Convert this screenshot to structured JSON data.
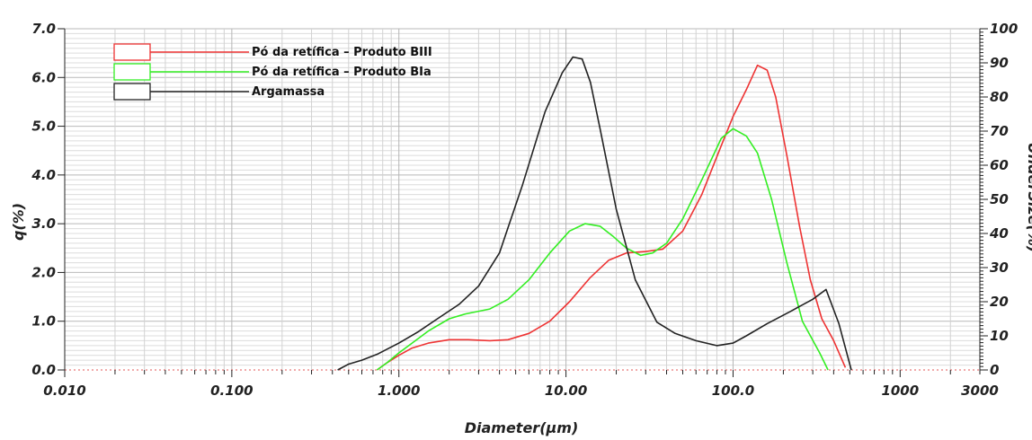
{
  "chart_data": {
    "type": "line",
    "xscale": "log",
    "xlim": [
      0.01,
      3000
    ],
    "ylim": [
      0,
      7
    ],
    "y2lim": [
      0,
      100
    ],
    "xlabel": "Diameter(µm)",
    "ylabel": "q(%)",
    "y2label": "UnderSize(%)",
    "grid": true,
    "legend_position": "top-left",
    "x_tick_labels": [
      {
        "v": 0.01,
        "label": "0.010"
      },
      {
        "v": 0.1,
        "label": "0.100"
      },
      {
        "v": 1,
        "label": "1.000"
      },
      {
        "v": 10,
        "label": "10.00"
      },
      {
        "v": 100,
        "label": "100.0"
      },
      {
        "v": 1000,
        "label": "1000"
      },
      {
        "v": 3000,
        "label": "3000"
      }
    ],
    "y_tick_labels": [
      {
        "v": 0,
        "label": "0.0"
      },
      {
        "v": 1,
        "label": "1.0"
      },
      {
        "v": 2,
        "label": "2.0"
      },
      {
        "v": 3,
        "label": "3.0"
      },
      {
        "v": 4,
        "label": "4.0"
      },
      {
        "v": 5,
        "label": "5.0"
      },
      {
        "v": 6,
        "label": "6.0"
      },
      {
        "v": 7,
        "label": "7.0"
      }
    ],
    "y2_tick_labels": [
      {
        "v": 0,
        "label": "0"
      },
      {
        "v": 10,
        "label": "10"
      },
      {
        "v": 20,
        "label": "20"
      },
      {
        "v": 30,
        "label": "30"
      },
      {
        "v": 40,
        "label": "40"
      },
      {
        "v": 50,
        "label": "50"
      },
      {
        "v": 60,
        "label": "60"
      },
      {
        "v": 70,
        "label": "70"
      },
      {
        "v": 80,
        "label": "80"
      },
      {
        "v": 90,
        "label": "90"
      },
      {
        "v": 100,
        "label": "100"
      }
    ],
    "series": [
      {
        "name": "Pó da retífica – Produto BIII",
        "color": "#ee3333",
        "x": [
          0.74,
          0.85,
          1.0,
          1.2,
          1.5,
          2.0,
          2.6,
          3.5,
          4.5,
          6.0,
          8.0,
          10.5,
          14,
          18,
          23,
          30,
          38,
          50,
          65,
          85,
          100,
          120,
          140,
          160,
          180,
          210,
          250,
          290,
          340,
          400,
          470
        ],
        "y": [
          0.0,
          0.15,
          0.3,
          0.45,
          0.55,
          0.62,
          0.62,
          0.6,
          0.62,
          0.75,
          1.0,
          1.4,
          1.9,
          2.25,
          2.4,
          2.43,
          2.48,
          2.85,
          3.6,
          4.6,
          5.2,
          5.75,
          6.25,
          6.15,
          5.6,
          4.4,
          2.95,
          1.85,
          1.05,
          0.6,
          0.05
        ]
      },
      {
        "name": "Pó da retífica – Produto BIa",
        "color": "#33ee22",
        "x": [
          0.74,
          0.85,
          1.0,
          1.2,
          1.5,
          2.0,
          2.5,
          3.5,
          4.5,
          6.0,
          8.0,
          10.5,
          13,
          16,
          19,
          23,
          28,
          33,
          40,
          50,
          65,
          85,
          100,
          120,
          140,
          170,
          210,
          260,
          330,
          370
        ],
        "y": [
          0.0,
          0.15,
          0.35,
          0.55,
          0.8,
          1.05,
          1.15,
          1.25,
          1.45,
          1.85,
          2.4,
          2.85,
          3.0,
          2.95,
          2.75,
          2.5,
          2.35,
          2.4,
          2.6,
          3.1,
          3.9,
          4.75,
          4.95,
          4.8,
          4.45,
          3.5,
          2.2,
          1.0,
          0.35,
          0.0
        ]
      },
      {
        "name": "Argamassa",
        "color": "#222222",
        "x": [
          0.43,
          0.5,
          0.6,
          0.75,
          1.0,
          1.3,
          1.7,
          2.3,
          3.0,
          4.0,
          5.5,
          7.5,
          9.5,
          11,
          12.5,
          14,
          16,
          20,
          26,
          35,
          45,
          60,
          80,
          100,
          120,
          160,
          220,
          300,
          360,
          430,
          510
        ],
        "y": [
          0.0,
          0.12,
          0.2,
          0.33,
          0.55,
          0.78,
          1.05,
          1.35,
          1.72,
          2.4,
          3.8,
          5.3,
          6.1,
          6.42,
          6.38,
          5.9,
          4.95,
          3.3,
          1.85,
          0.98,
          0.75,
          0.6,
          0.5,
          0.55,
          0.7,
          0.95,
          1.2,
          1.45,
          1.65,
          0.95,
          0.0
        ]
      }
    ]
  }
}
